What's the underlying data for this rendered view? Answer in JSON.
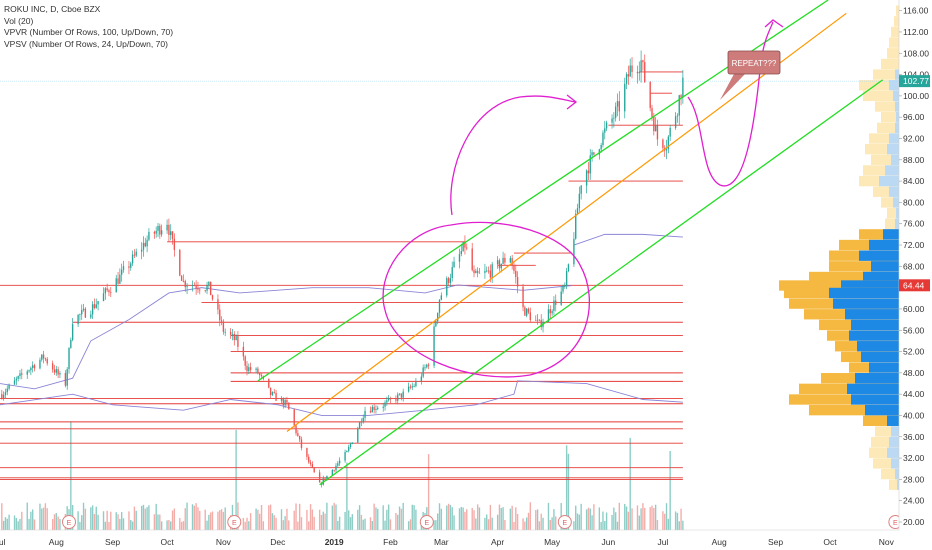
{
  "legend": {
    "title": "ROKU INC, D, Cboe BZX",
    "vol": "Vol (20)",
    "vpvr": "VPVR (Number Of Rows, 100, Up/Down, 70)",
    "vpsv": "VPSV (Number Of Rows, 24, Up/Down, 70)"
  },
  "annotation": {
    "callout": "REPEAT???"
  },
  "colors": {
    "up": "#26a69a",
    "down": "#ef5350",
    "level": "#e53935",
    "channel": "#22dd22",
    "midline": "#ff9800",
    "vwap": "#8a84d6",
    "magenta": "#e020d0",
    "vpUp": "#1e88e5",
    "vpDown": "#f5b942",
    "priceTag": "#26a69a",
    "levelTag": "#e53935",
    "callout": "#cd7b7b"
  },
  "chart_data": {
    "type": "candlestick",
    "title": "ROKU INC, D, Cboe BZX",
    "x_axis": {
      "tick_labels": [
        "Jul",
        "Aug",
        "Sep",
        "Oct",
        "Nov",
        "Dec",
        "2019",
        "Feb",
        "Mar",
        "Apr",
        "May",
        "Jun",
        "Jul",
        "Aug",
        "Sep",
        "Oct",
        "Nov"
      ],
      "tick_positions": [
        "2018-07-01",
        "2018-08-01",
        "2018-09-01",
        "2018-10-01",
        "2018-11-01",
        "2018-12-01",
        "2019-01-01",
        "2019-02-01",
        "2019-03-01",
        "2019-04-01",
        "2019-05-01",
        "2019-06-01",
        "2019-07-01",
        "2019-08-01",
        "2019-09-01",
        "2019-10-01",
        "2019-11-01"
      ],
      "range": [
        "2018-07-01",
        "2019-11-08"
      ]
    },
    "y_axis": {
      "ticks": [
        20,
        24,
        28,
        32,
        36,
        40,
        44,
        48,
        52,
        56,
        60,
        64,
        68,
        72,
        76,
        80,
        84,
        88,
        92,
        96,
        100,
        104,
        108,
        112,
        116
      ],
      "ylim": [
        18.5,
        118
      ]
    },
    "last_price": 102.77,
    "highlighted_level": 64.44,
    "price_path": [
      [
        "2018-07-02",
        44.0
      ],
      [
        "2018-07-16",
        48.5
      ],
      [
        "2018-07-25",
        51.0
      ],
      [
        "2018-08-06",
        46.0
      ],
      [
        "2018-08-10",
        58.0
      ],
      [
        "2018-08-20",
        60.0
      ],
      [
        "2018-09-05",
        66.0
      ],
      [
        "2018-09-20",
        73.0
      ],
      [
        "2018-10-01",
        76.5
      ],
      [
        "2018-10-04",
        72.0
      ],
      [
        "2018-10-10",
        65.0
      ],
      [
        "2018-10-24",
        64.0
      ],
      [
        "2018-11-01",
        56.0
      ],
      [
        "2018-11-08",
        54.0
      ],
      [
        "2018-11-14",
        49.0
      ],
      [
        "2018-11-20",
        48.0
      ],
      [
        "2018-11-27",
        44.0
      ],
      [
        "2018-12-06",
        42.0
      ],
      [
        "2018-12-14",
        34.0
      ],
      [
        "2018-12-24",
        27.0
      ],
      [
        "2019-01-08",
        33.0
      ],
      [
        "2019-01-18",
        41.0
      ],
      [
        "2019-01-28",
        42.0
      ],
      [
        "2019-02-08",
        44.0
      ],
      [
        "2019-02-15",
        46.0
      ],
      [
        "2019-02-22",
        50.0
      ],
      [
        "2019-02-28",
        62.0
      ],
      [
        "2019-03-08",
        68.0
      ],
      [
        "2019-03-14",
        72.0
      ],
      [
        "2019-03-19",
        66.0
      ],
      [
        "2019-03-28",
        67.0
      ],
      [
        "2019-04-08",
        70.0
      ],
      [
        "2019-04-15",
        60.0
      ],
      [
        "2019-04-24",
        57.0
      ],
      [
        "2019-05-02",
        61.0
      ],
      [
        "2019-05-08",
        64.0
      ],
      [
        "2019-05-13",
        74.0
      ],
      [
        "2019-05-17",
        84.0
      ],
      [
        "2019-05-28",
        92.0
      ],
      [
        "2019-06-07",
        98.0
      ],
      [
        "2019-06-13",
        105.0
      ],
      [
        "2019-06-19",
        106.5
      ],
      [
        "2019-06-24",
        98.0
      ],
      [
        "2019-06-28",
        92.0
      ],
      [
        "2019-07-03",
        91.0
      ],
      [
        "2019-07-09",
        98.0
      ],
      [
        "2019-07-12",
        102.77
      ]
    ],
    "annotation_text": "REPEAT???",
    "event_markers": [
      "E",
      "E",
      "E",
      "E",
      "E"
    ]
  }
}
